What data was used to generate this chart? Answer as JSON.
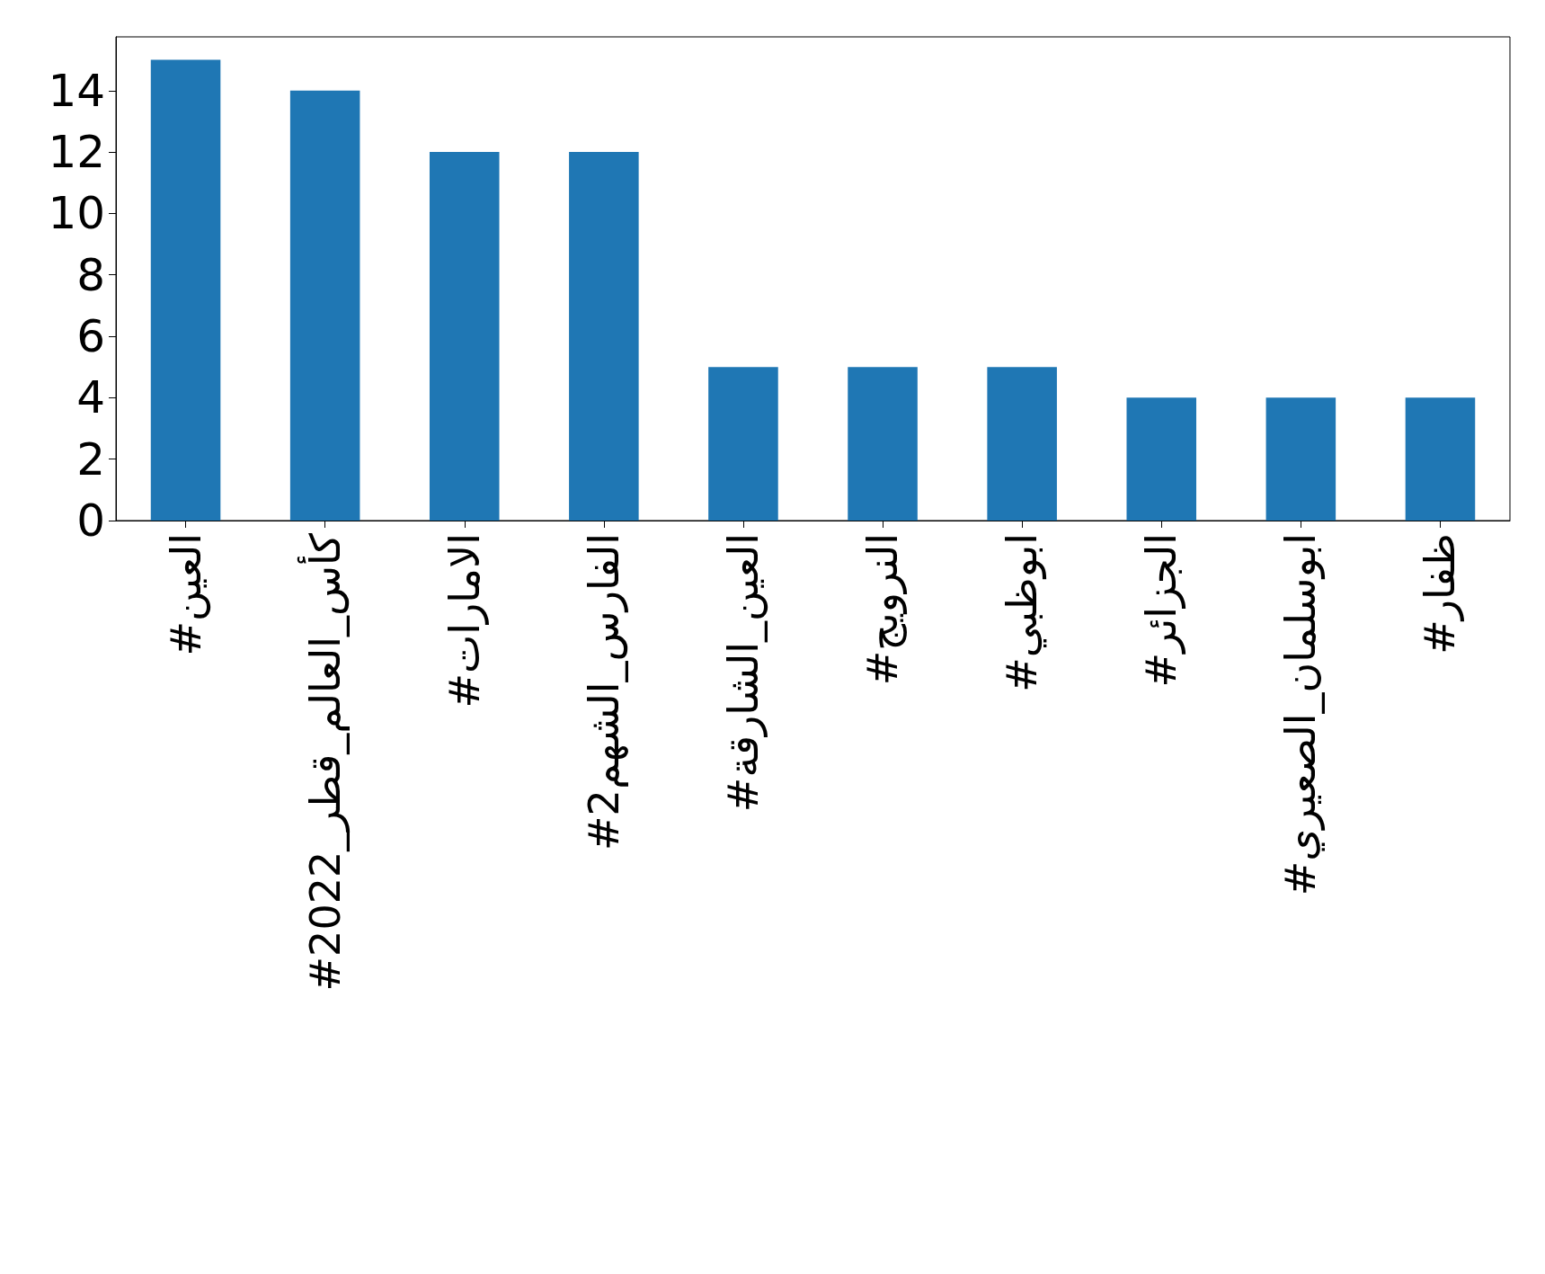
{
  "chart_data": {
    "type": "bar",
    "categories": [
      "#العين",
      "#كأس_العالم_قطر_2022",
      "#الامارات",
      "#الفارس_الشهم2",
      "#العين_الشارقة",
      "#النرويج",
      "#ابوظبي",
      "#الجزائر",
      "#ابوسلمان_الصعيري",
      "#ظفار"
    ],
    "values": [
      15,
      14,
      12,
      12,
      5,
      5,
      5,
      4,
      4,
      4
    ],
    "color": "#1f77b4",
    "ylim": [
      0,
      15.75
    ],
    "yticks": [
      0,
      2,
      4,
      6,
      8,
      10,
      12,
      14
    ],
    "grid": false
  }
}
